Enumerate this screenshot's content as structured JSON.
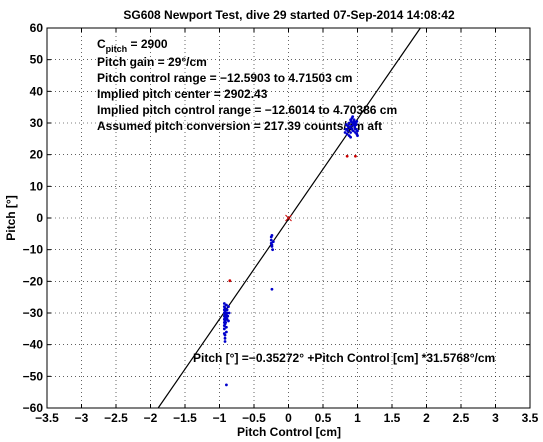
{
  "chart_data": {
    "type": "scatter",
    "title": "SG608 Newport Test, dive 29 started 07-Sep-2014 14:08:42",
    "xlabel": "Pitch Control [cm]",
    "ylabel": "Pitch [°]",
    "xlim": [
      -3.5,
      3.5
    ],
    "ylim": [
      -60,
      60
    ],
    "x_ticks": [
      -3.5,
      -3,
      -2.5,
      -2,
      -1.5,
      -1,
      -0.5,
      0,
      0.5,
      1,
      1.5,
      2,
      2.5,
      3,
      3.5
    ],
    "x_tick_labels": [
      "−3.5",
      "−3",
      "−2.5",
      "−2",
      "−1.5",
      "−1",
      "−0.5",
      "0",
      "0.5",
      "1",
      "1.5",
      "2",
      "2.5",
      "3",
      "3.5"
    ],
    "y_ticks": [
      -60,
      -50,
      -40,
      -30,
      -20,
      -10,
      0,
      10,
      20,
      30,
      40,
      50,
      60
    ],
    "y_tick_labels": [
      "−60",
      "−50",
      "−40",
      "−30",
      "−20",
      "−10",
      "0",
      "10",
      "20",
      "30",
      "40",
      "50",
      "60"
    ],
    "grid": true,
    "annotations": {
      "c_pitch_prefix": "C",
      "c_pitch_sub": "pitch",
      "c_pitch_value": " = 2900",
      "pitch_gain": "Pitch gain = 29°/cm",
      "control_range": "Pitch control range = −12.5903 to 4.71503 cm",
      "implied_center": "Implied pitch center = 2902.43",
      "implied_range": "Implied pitch control range = −12.6014 to 4.70386 cm",
      "conversion": "Assumed pitch conversion = 217.39 counts/cm aft",
      "fit_equation": "Pitch [°] =−0.35272° +Pitch Control [cm] *31.5768°/cm"
    },
    "fit": {
      "slope": 31.5768,
      "intercept": -0.35272,
      "color": "#000000"
    },
    "series": [
      {
        "color": "#0000cc",
        "points": [
          [
            -0.93,
            -27
          ],
          [
            -0.93,
            -28
          ],
          [
            -0.93,
            -29
          ],
          [
            -0.93,
            -30
          ],
          [
            -0.93,
            -31
          ],
          [
            -0.93,
            -32
          ],
          [
            -0.93,
            -33
          ],
          [
            -0.93,
            -34
          ],
          [
            -0.93,
            -35
          ],
          [
            -0.92,
            -28.5
          ],
          [
            -0.92,
            -29.5
          ],
          [
            -0.92,
            -30.5
          ],
          [
            -0.92,
            -31.5
          ],
          [
            -0.92,
            -32.5
          ],
          [
            -0.92,
            -33.5
          ],
          [
            -0.91,
            -30
          ],
          [
            -0.91,
            -31
          ],
          [
            -0.91,
            -32
          ],
          [
            -0.91,
            -29
          ],
          [
            -0.91,
            -33
          ],
          [
            -0.9,
            -27.5
          ],
          [
            -0.9,
            -30.5
          ],
          [
            -0.9,
            -31.5
          ],
          [
            -0.9,
            -34.5
          ],
          [
            -0.9,
            -36
          ],
          [
            -0.89,
            -29
          ],
          [
            -0.89,
            -32
          ],
          [
            -0.89,
            -30
          ],
          [
            -0.88,
            -31
          ],
          [
            -0.87,
            -28
          ],
          [
            -0.87,
            -32.5
          ],
          [
            -0.86,
            -30
          ],
          [
            -0.92,
            -37
          ],
          [
            -0.92,
            -38
          ],
          [
            -0.92,
            -39
          ],
          [
            -0.93,
            -36.5
          ],
          [
            -0.9,
            -52.7
          ],
          [
            -0.25,
            -6
          ],
          [
            -0.25,
            -7
          ],
          [
            -0.25,
            -8
          ],
          [
            -0.24,
            -9
          ],
          [
            -0.24,
            -5.5
          ],
          [
            -0.23,
            -10
          ],
          [
            -0.22,
            -7.5
          ],
          [
            -0.24,
            -8.5
          ],
          [
            -0.24,
            -22.5
          ],
          [
            0.82,
            27
          ],
          [
            0.83,
            28
          ],
          [
            0.84,
            29.5
          ],
          [
            0.85,
            26.5
          ],
          [
            0.86,
            27.5
          ],
          [
            0.87,
            29
          ],
          [
            0.88,
            30
          ],
          [
            0.89,
            28.5
          ],
          [
            0.9,
            31
          ],
          [
            0.9,
            27
          ],
          [
            0.91,
            29
          ],
          [
            0.91,
            30.5
          ],
          [
            0.92,
            31.5
          ],
          [
            0.92,
            28
          ],
          [
            0.93,
            30
          ],
          [
            0.93,
            32
          ],
          [
            0.94,
            29.5
          ],
          [
            0.94,
            27.5
          ],
          [
            0.95,
            30.5
          ],
          [
            0.95,
            31
          ],
          [
            0.96,
            28.5
          ],
          [
            0.96,
            29
          ],
          [
            0.97,
            30
          ],
          [
            0.97,
            27
          ],
          [
            0.98,
            28
          ],
          [
            0.98,
            29.5
          ],
          [
            0.99,
            26.5
          ],
          [
            1.0,
            27.5
          ],
          [
            0.99,
            30.5
          ],
          [
            0.88,
            26
          ],
          [
            0.9,
            25.5
          ],
          [
            0.86,
            29
          ],
          [
            1.0,
            26
          ],
          [
            0.85,
            28
          ]
        ]
      },
      {
        "color": "#cc0000",
        "points": [
          [
            0,
            0
          ],
          [
            -0.85,
            -19.8
          ],
          [
            0.85,
            19.5
          ],
          [
            0.97,
            19.5
          ]
        ]
      }
    ]
  }
}
